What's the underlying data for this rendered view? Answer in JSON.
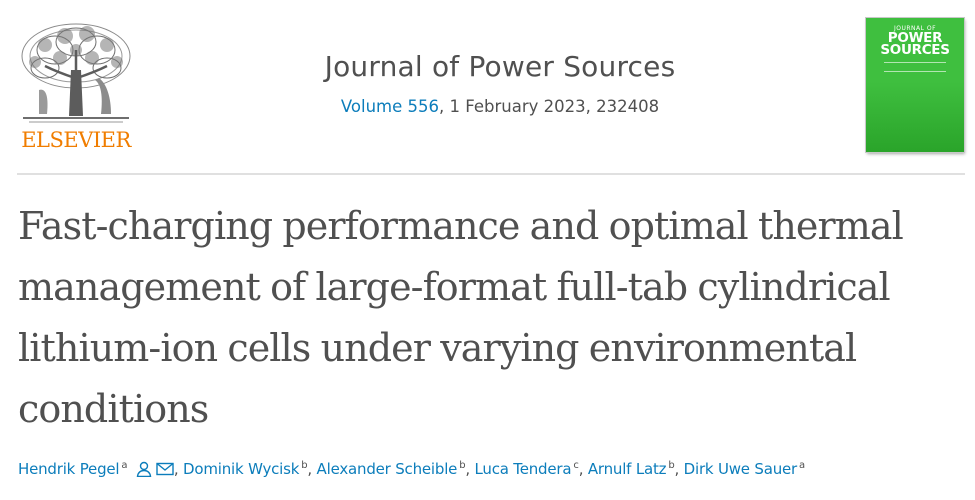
{
  "publisher": {
    "logo_text": "ELSEVIER",
    "logo_icon": "elsevier-tree-icon"
  },
  "journal": {
    "title": "Journal of Power Sources",
    "volume_link": "Volume 556",
    "citation_rest": ", 1 February 2023, 232408",
    "cover": {
      "small_text": "JOURNAL OF",
      "title_line1": "POWER",
      "title_line2": "SOURCES",
      "color": "#3fbf3f"
    }
  },
  "article": {
    "title_lines": [
      "Fast-charging performance and optimal thermal",
      "management of large-format full-tab cylindrical",
      "lithium-ion cells under varying environmental",
      "conditions"
    ]
  },
  "authors": [
    {
      "name": "Hendrik Pegel",
      "aff": "a",
      "icons": [
        "person-icon",
        "envelope-icon"
      ]
    },
    {
      "name": "Dominik Wycisk",
      "aff": "b"
    },
    {
      "name": "Alexander Scheible",
      "aff": "b"
    },
    {
      "name": "Luca Tendera",
      "aff": "c"
    },
    {
      "name": "Arnulf Latz",
      "aff": "b"
    },
    {
      "name": "Dirk Uwe Sauer",
      "aff": "a"
    }
  ],
  "colors": {
    "link": "#0c7dbb",
    "text": "#505050",
    "brand_orange": "#f07d00",
    "divider": "#e0e0e0"
  }
}
